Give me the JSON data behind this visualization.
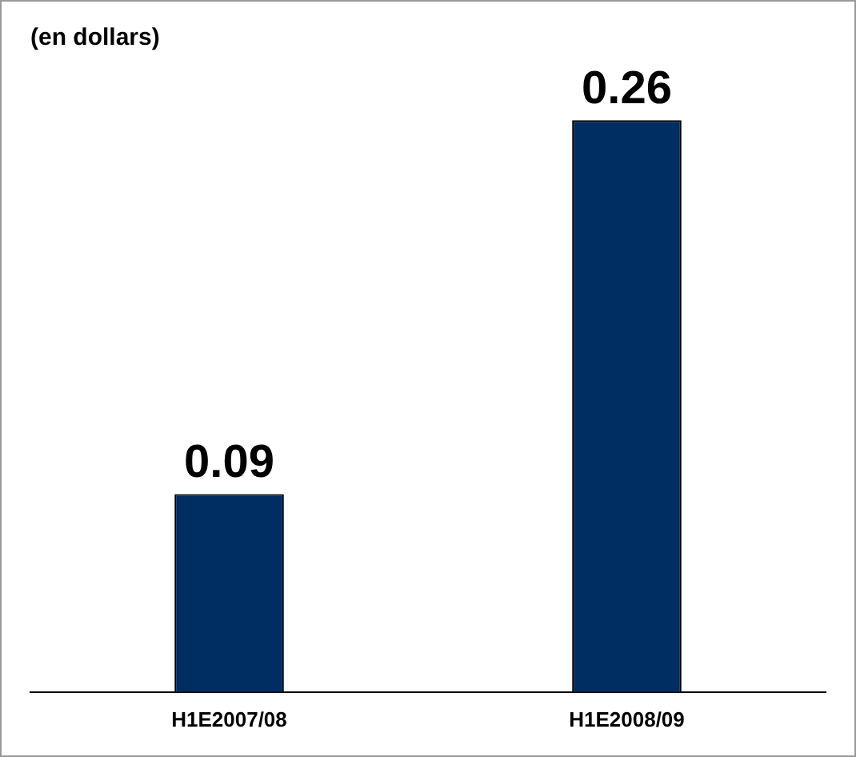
{
  "chart_data": {
    "type": "bar",
    "title": "(en dollars)",
    "categories": [
      "H1E2007/08",
      "H1E2008/09"
    ],
    "values": [
      0.09,
      0.26
    ],
    "color": "#002d62",
    "tick_labels": "x",
    "data_labels": true,
    "grid": false
  }
}
